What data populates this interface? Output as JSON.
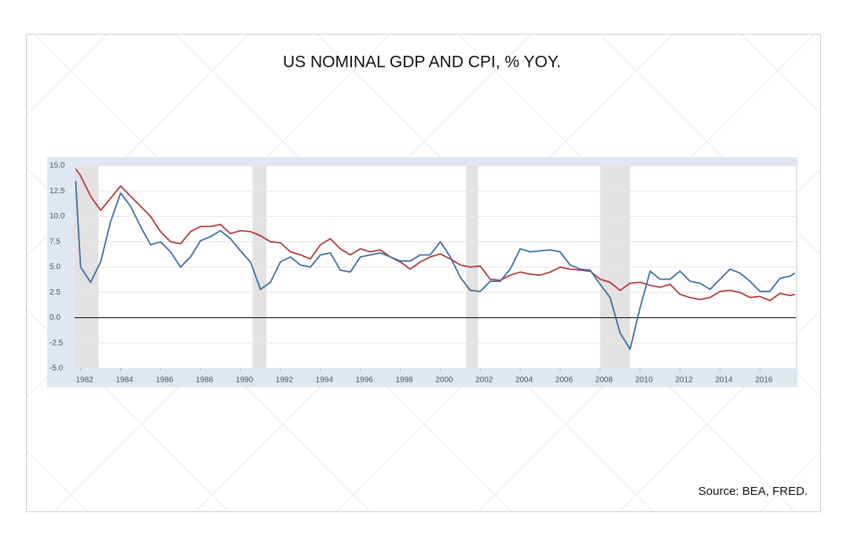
{
  "chart_data": {
    "type": "line",
    "title": "US NOMINAL GDP AND CPI, % YOY.",
    "source": "Source: BEA, FRED.",
    "x": [
      1981.75,
      1982,
      1982.5,
      1983,
      1983.5,
      1984,
      1984.5,
      1985,
      1985.5,
      1986,
      1986.5,
      1987,
      1987.5,
      1988,
      1988.5,
      1989,
      1989.5,
      1990,
      1990.5,
      1991,
      1991.5,
      1992,
      1992.5,
      1993,
      1993.5,
      1994,
      1994.5,
      1995,
      1995.5,
      1996,
      1996.5,
      1997,
      1997.5,
      1998,
      1998.5,
      1999,
      1999.5,
      2000,
      2000.5,
      2001,
      2001.5,
      2002,
      2002.5,
      2003,
      2003.5,
      2004,
      2004.5,
      2005,
      2005.5,
      2006,
      2006.5,
      2007,
      2007.5,
      2008,
      2008.5,
      2009,
      2009.5,
      2010,
      2010.5,
      2011,
      2011.5,
      2012,
      2012.5,
      2013,
      2013.5,
      2014,
      2014.5,
      2015,
      2015.5,
      2016,
      2016.5,
      2017,
      2017.5,
      2017.75
    ],
    "series": [
      {
        "color": "#3a6ea5",
        "values": [
          13.5,
          5.0,
          3.5,
          5.5,
          9.5,
          12.3,
          11.0,
          9.0,
          7.2,
          7.5,
          6.5,
          5.0,
          6.0,
          7.6,
          8.0,
          8.6,
          7.8,
          6.6,
          5.5,
          2.8,
          3.5,
          5.5,
          6.0,
          5.2,
          5.0,
          6.2,
          6.4,
          4.7,
          4.5,
          6.0,
          6.2,
          6.4,
          6.0,
          5.6,
          5.6,
          6.2,
          6.2,
          7.5,
          6.0,
          4.0,
          2.7,
          2.6,
          3.6,
          3.6,
          4.8,
          6.8,
          6.5,
          6.6,
          6.7,
          6.5,
          5.2,
          4.8,
          4.7,
          3.3,
          2.0,
          -1.5,
          -3.1,
          1.0,
          4.6,
          3.8,
          3.8,
          4.6,
          3.6,
          3.4,
          2.8,
          3.8,
          4.8,
          4.4,
          3.6,
          2.6,
          2.6,
          3.9,
          4.1,
          4.4
        ]
      },
      {
        "color": "#b03a3a",
        "values": [
          14.7,
          14.0,
          12.0,
          10.6,
          11.8,
          13.0,
          12.0,
          11.0,
          10.0,
          8.5,
          7.5,
          7.3,
          8.5,
          9.0,
          9.0,
          9.2,
          8.3,
          8.6,
          8.5,
          8.1,
          7.5,
          7.4,
          6.5,
          6.2,
          5.8,
          7.2,
          7.8,
          6.8,
          6.2,
          6.8,
          6.5,
          6.7,
          6.0,
          5.5,
          4.8,
          5.5,
          6.0,
          6.3,
          5.8,
          5.2,
          5.0,
          5.1,
          3.8,
          3.7,
          4.2,
          4.5,
          4.3,
          4.2,
          4.5,
          5.0,
          4.8,
          4.7,
          4.6,
          3.8,
          3.5,
          2.7,
          3.4,
          3.5,
          3.2,
          3.0,
          3.3,
          2.3,
          2.0,
          1.8,
          2.0,
          2.6,
          2.7,
          2.5,
          2.0,
          2.1,
          1.7,
          2.4,
          2.2,
          2.3
        ]
      }
    ],
    "shaded_spans": [
      [
        1981.7,
        1982.9
      ],
      [
        1990.6,
        1991.3
      ],
      [
        2001.3,
        2001.9
      ],
      [
        2008.0,
        2009.5
      ]
    ],
    "shade_color": "#e4e1e2",
    "xlim": [
      1981.7,
      2017.8
    ],
    "xticks": [
      1982,
      1984,
      1986,
      1988,
      1990,
      1992,
      1994,
      1996,
      1998,
      2000,
      2002,
      2004,
      2006,
      2008,
      2010,
      2012,
      2014,
      2016
    ],
    "ylim": [
      -5,
      15
    ],
    "yticks": [
      {
        "value": -5,
        "label": "-5.0"
      },
      {
        "value": -2.5,
        "label": "-2.5"
      },
      {
        "value": 0,
        "label": "0.0"
      },
      {
        "value": 2.5,
        "label": "2.5"
      },
      {
        "value": 5,
        "label": "5.0"
      },
      {
        "value": 7.5,
        "label": "7.5"
      },
      {
        "value": 10,
        "label": "10.0"
      },
      {
        "value": 12.5,
        "label": "12.5"
      },
      {
        "value": 15,
        "label": "15.0"
      }
    ],
    "grid": true
  }
}
